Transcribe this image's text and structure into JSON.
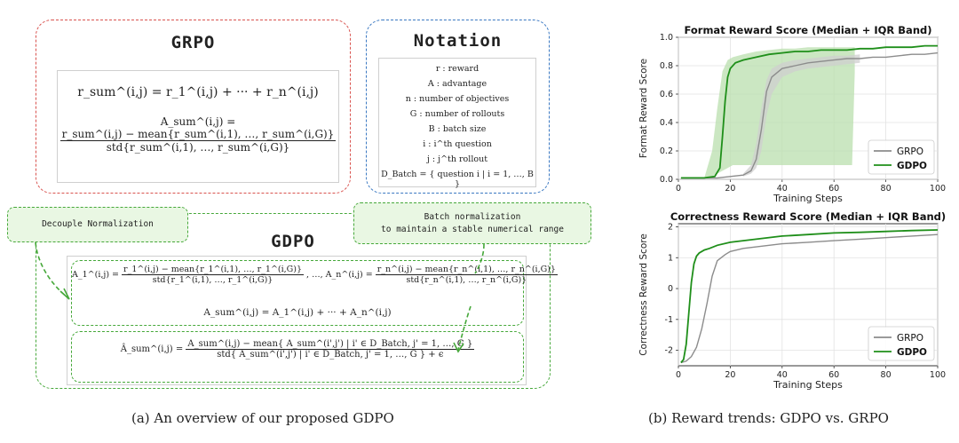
{
  "left_panel": {
    "grpo_title": "GRPO",
    "grpo_eq1": "r_sum^(i,j) = r_1^(i,j) + ··· + r_n^(i,j)",
    "grpo_eq2_lhs": "A_sum^(i,j) =",
    "grpo_eq2_num": "r_sum^(i,j) − mean{r_sum^(i,1), …, r_sum^(i,G)}",
    "grpo_eq2_den": "std{r_sum^(i,1), …, r_sum^(i,G)}",
    "notation_title": "Notation",
    "notation_items": [
      "r : reward",
      "A : advantage",
      "n : number of objectives",
      "G : number of rollouts",
      "B : batch size",
      "i : i^th question",
      "j : j^th rollout",
      "D_Batch = { question i | i = 1, …, B }"
    ],
    "callout_decouple": "Decouple Normalization",
    "callout_batch": "Batch normalization\nto maintain a stable numerical range",
    "gdpo_title": "GDPO",
    "gdpo_eq1_a1_lhs": "A_1^(i,j) =",
    "gdpo_eq1_a1_num": "r_1^(i,j) − mean{r_1^(i,1), …, r_1^(i,G)}",
    "gdpo_eq1_a1_den": "std{r_1^(i,1), …, r_1^(i,G)}",
    "gdpo_eq1_mid": ", …, A_n^(i,j) =",
    "gdpo_eq1_an_num": "r_n^(i,j) − mean{r_n^(i,1), …, r_n^(i,G)}",
    "gdpo_eq1_an_den": "std{r_n^(i,1), …, r_n^(i,G)}",
    "gdpo_eq2": "A_sum^(i,j) = A_1^(i,j) + ··· + A_n^(i,j)",
    "gdpo_eq3_lhs": "Â_sum^(i,j) =",
    "gdpo_eq3_num": "A_sum^(i,j) − mean{ A_sum^(i',j') | i' ∈ D_Batch, j' = 1, …, G }",
    "gdpo_eq3_den": "std{ A_sum^(i',j') | i' ∈ D_Batch, j' = 1, …, G } + ϵ",
    "caption": "(a) An overview of our proposed GDPO"
  },
  "right_panel": {
    "caption": "(b) Reward trends: GDPO vs. GRPO"
  },
  "colors": {
    "grpo_box": "#d9534f",
    "notation_box": "#3a78c2",
    "gdpo_green": "#46a83a",
    "grpo_line": "#8c8c8c",
    "gdpo_line": "#1f8f1a",
    "gdpo_band": "#b9dfae",
    "grpo_band": "#cfcfcf"
  },
  "chart_data": [
    {
      "type": "line",
      "title": "Format Reward Score (Median + IQR Band)",
      "xlabel": "Training Steps",
      "ylabel": "Format Reward Score",
      "xlim": [
        0,
        100
      ],
      "ylim": [
        0,
        1.0
      ],
      "xticks": [
        0,
        20,
        40,
        60,
        80,
        100
      ],
      "yticks": [
        0.0,
        0.2,
        0.4,
        0.6,
        0.8,
        1.0
      ],
      "grid": true,
      "legend_position": "lower-right",
      "series": [
        {
          "name": "GRPO",
          "color": "#8c8c8c",
          "x": [
            1,
            5,
            10,
            15,
            20,
            25,
            28,
            30,
            32,
            34,
            36,
            40,
            45,
            50,
            55,
            60,
            65,
            70,
            75,
            80,
            85,
            90,
            95,
            100
          ],
          "y": [
            0.01,
            0.01,
            0.01,
            0.01,
            0.02,
            0.03,
            0.06,
            0.14,
            0.35,
            0.62,
            0.72,
            0.78,
            0.8,
            0.82,
            0.83,
            0.84,
            0.85,
            0.85,
            0.86,
            0.86,
            0.87,
            0.88,
            0.88,
            0.89
          ]
        },
        {
          "name": "GDPO",
          "color": "#1f8f1a",
          "x": [
            1,
            5,
            10,
            14,
            16,
            17,
            18,
            19,
            20,
            22,
            25,
            30,
            35,
            40,
            45,
            50,
            55,
            60,
            65,
            70,
            75,
            80,
            85,
            90,
            95,
            100
          ],
          "y": [
            0.01,
            0.01,
            0.01,
            0.02,
            0.08,
            0.3,
            0.55,
            0.72,
            0.78,
            0.82,
            0.84,
            0.86,
            0.88,
            0.89,
            0.9,
            0.9,
            0.91,
            0.91,
            0.91,
            0.92,
            0.92,
            0.93,
            0.93,
            0.93,
            0.94,
            0.94
          ]
        }
      ],
      "bands": [
        {
          "series": "GDPO",
          "x": [
            10,
            13,
            15,
            17,
            19,
            21,
            25,
            30,
            35,
            40,
            45,
            50,
            55,
            60,
            65,
            67,
            68
          ],
          "lower": [
            0.01,
            0.02,
            0.04,
            0.06,
            0.08,
            0.1,
            0.1,
            0.1,
            0.1,
            0.1,
            0.1,
            0.1,
            0.1,
            0.1,
            0.1,
            0.1,
            0.75
          ],
          "upper": [
            0.01,
            0.2,
            0.5,
            0.76,
            0.84,
            0.86,
            0.88,
            0.9,
            0.91,
            0.92,
            0.92,
            0.93,
            0.93,
            0.93,
            0.93,
            0.93,
            0.93
          ]
        },
        {
          "series": "GRPO",
          "x": [
            25,
            28,
            30,
            32,
            34,
            36,
            40,
            45,
            50,
            55,
            60,
            65,
            70
          ],
          "lower": [
            0.02,
            0.04,
            0.08,
            0.2,
            0.45,
            0.6,
            0.72,
            0.76,
            0.78,
            0.79,
            0.8,
            0.81,
            0.82
          ],
          "upper": [
            0.04,
            0.1,
            0.25,
            0.5,
            0.7,
            0.78,
            0.82,
            0.84,
            0.85,
            0.86,
            0.87,
            0.87,
            0.88
          ]
        }
      ]
    },
    {
      "type": "line",
      "title": "Correctness Reward Score (Median + IQR Band)",
      "xlabel": "Training Steps",
      "ylabel": "Correctness Reward Score",
      "xlim": [
        0,
        100
      ],
      "ylim": [
        -2.5,
        2.1
      ],
      "xticks": [
        0,
        20,
        40,
        60,
        80,
        100
      ],
      "yticks": [
        -2,
        -1,
        0,
        1,
        2
      ],
      "grid": true,
      "legend_position": "lower-right",
      "series": [
        {
          "name": "GRPO",
          "color": "#8c8c8c",
          "x": [
            1,
            3,
            5,
            7,
            9,
            11,
            13,
            15,
            18,
            20,
            25,
            30,
            40,
            50,
            60,
            70,
            80,
            90,
            100
          ],
          "y": [
            -2.4,
            -2.35,
            -2.2,
            -1.9,
            -1.3,
            -0.5,
            0.4,
            0.9,
            1.1,
            1.2,
            1.3,
            1.35,
            1.45,
            1.5,
            1.55,
            1.6,
            1.65,
            1.7,
            1.75
          ]
        },
        {
          "name": "GDPO",
          "color": "#1f8f1a",
          "x": [
            1,
            2,
            3,
            4,
            5,
            6,
            7,
            8,
            10,
            12,
            15,
            20,
            25,
            30,
            40,
            50,
            60,
            70,
            80,
            90,
            100
          ],
          "y": [
            -2.4,
            -2.3,
            -1.8,
            -0.8,
            0.2,
            0.8,
            1.05,
            1.15,
            1.25,
            1.3,
            1.4,
            1.5,
            1.55,
            1.6,
            1.7,
            1.75,
            1.8,
            1.82,
            1.85,
            1.88,
            1.9
          ]
        }
      ]
    }
  ]
}
